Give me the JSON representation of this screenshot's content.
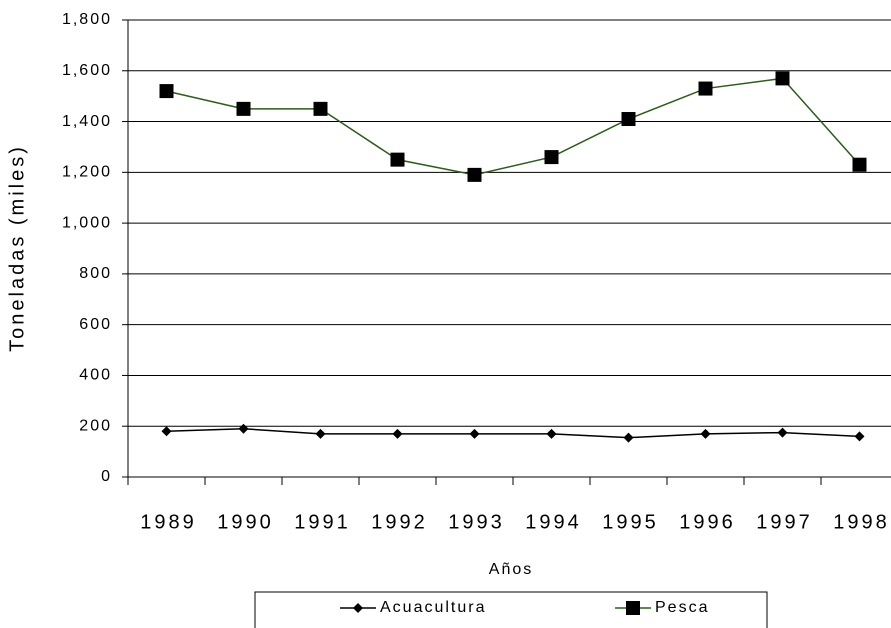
{
  "chart_data": {
    "type": "line",
    "x_label": "Años",
    "y_label": "Toneladas (miles)",
    "categories": [
      "1989",
      "1990",
      "1991",
      "1992",
      "1993",
      "1994",
      "1995",
      "1996",
      "1997",
      "1998"
    ],
    "series": [
      {
        "name": "Acuacultura",
        "color": "#000000",
        "marker": "diamond",
        "values": [
          180,
          190,
          170,
          170,
          170,
          170,
          155,
          170,
          175,
          160
        ]
      },
      {
        "name": "Pesca",
        "color": "#2e5a1c",
        "marker": "square",
        "values": [
          1520,
          1450,
          1450,
          1250,
          1190,
          1260,
          1410,
          1530,
          1570,
          1230
        ]
      }
    ],
    "ylim": [
      0,
      1800
    ],
    "yticks": [
      0,
      200,
      400,
      600,
      800,
      {
        "value": 1000,
        "label": "1,000"
      },
      {
        "value": 1200,
        "label": "1,200"
      },
      {
        "value": 1400,
        "label": "1,400"
      },
      {
        "value": 1600,
        "label": "1,600"
      },
      {
        "value": 1800,
        "label": "1,800"
      }
    ],
    "grid": true,
    "legend": "bottom"
  }
}
